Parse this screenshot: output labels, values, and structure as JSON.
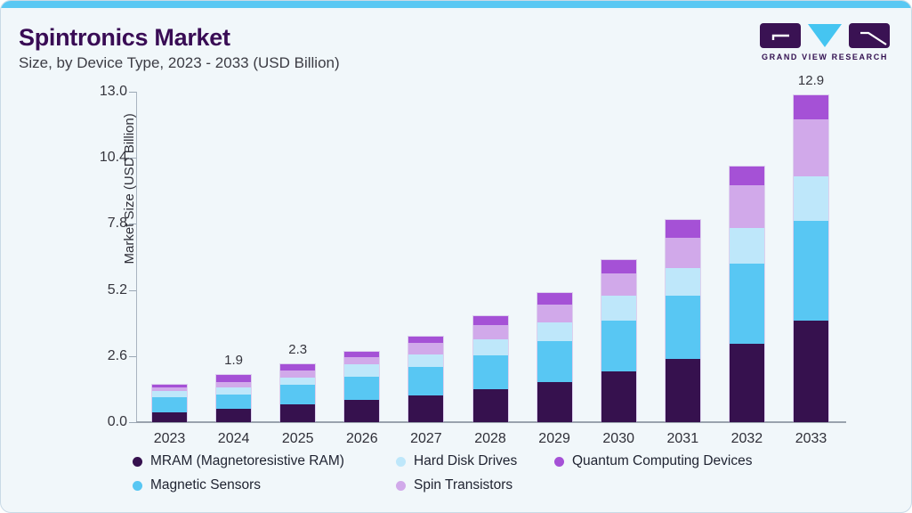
{
  "header": {
    "title": "Spintronics Market",
    "subtitle": "Size, by Device Type, 2023 - 2033 (USD Billion)"
  },
  "logo": {
    "wordmark": "GRAND VIEW RESEARCH"
  },
  "colors": {
    "accent_bar": "#5AC8F3",
    "card_background": "#F1F7FA",
    "title_text": "#390C55",
    "axis_line": "#9AA3AE"
  },
  "chart_data": {
    "type": "bar",
    "stacked": true,
    "title": "Spintronics Market Size, by Device Type, 2023 - 2033 (USD Billion)",
    "xlabel": "",
    "ylabel": "Market Size (USD Billion)",
    "ylim": [
      0,
      13.0
    ],
    "yticks": [
      0.0,
      2.6,
      5.2,
      7.8,
      10.4,
      13.0
    ],
    "ytick_labels": [
      "0.0",
      "2.6",
      "5.2",
      "7.8",
      "10.4",
      "13.0"
    ],
    "grid": false,
    "legend_position": "bottom",
    "categories": [
      "2023",
      "2024",
      "2025",
      "2026",
      "2027",
      "2028",
      "2029",
      "2030",
      "2031",
      "2032",
      "2033"
    ],
    "series": [
      {
        "name": "MRAM (Magnetoresistive RAM)",
        "color": "#36114E",
        "values": [
          0.4,
          0.55,
          0.7,
          0.9,
          1.05,
          1.3,
          1.6,
          2.0,
          2.5,
          3.1,
          4.0
        ]
      },
      {
        "name": "Magnetic Sensors",
        "color": "#58C7F3",
        "values": [
          0.6,
          0.55,
          0.8,
          0.9,
          1.15,
          1.35,
          1.6,
          2.0,
          2.5,
          3.15,
          3.95
        ]
      },
      {
        "name": "Hard Disk Drives",
        "color": "#BEE7FA",
        "values": [
          0.27,
          0.3,
          0.27,
          0.5,
          0.5,
          0.65,
          0.75,
          1.0,
          1.1,
          1.4,
          1.75
        ]
      },
      {
        "name": "Spin Transistors",
        "color": "#D1A9EA",
        "values": [
          0.13,
          0.2,
          0.28,
          0.28,
          0.45,
          0.55,
          0.7,
          0.9,
          1.2,
          1.7,
          2.25
        ]
      },
      {
        "name": "Quantum Computing Devices",
        "color": "#A551D6",
        "values": [
          0.1,
          0.3,
          0.25,
          0.22,
          0.25,
          0.35,
          0.45,
          0.5,
          0.7,
          0.75,
          0.95
        ]
      }
    ],
    "totals": [
      1.5,
      1.9,
      2.3,
      2.8,
      3.4,
      4.2,
      5.1,
      6.4,
      8.0,
      10.1,
      12.9
    ],
    "totals_shown": {
      "2024": "1.9",
      "2025": "2.3",
      "2033": "12.9"
    }
  }
}
